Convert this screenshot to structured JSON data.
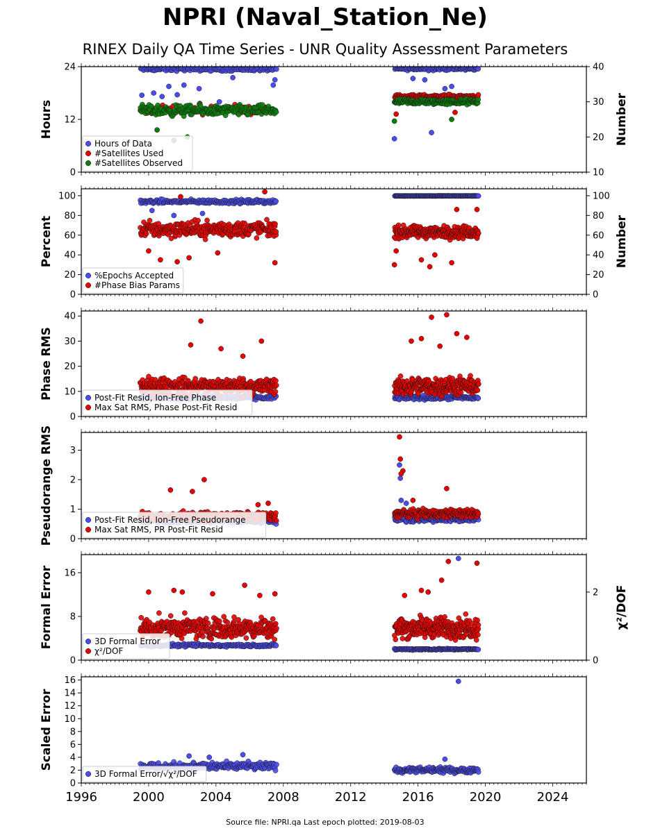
{
  "title": "NPRI (Naval_Station_Ne)",
  "subtitle": "RINEX Daily QA Time Series - UNR Quality Assessment Parameters",
  "source_note": "Source file: NPRI.qa Last epoch plotted: 2019-08-03",
  "colors": {
    "blue": "#4b4bf0",
    "red": "#e60000",
    "green": "#0a7d0a",
    "edge": "#1a1a1a"
  },
  "chart_data": [
    {
      "id": "p1",
      "type": "scatter",
      "ylabel": "Hours",
      "ylabel_right": "Number",
      "xlim": [
        1996,
        2026
      ],
      "ylim": [
        0,
        24
      ],
      "yticks": [
        0,
        12,
        24
      ],
      "ylim_right": [
        10,
        40
      ],
      "yticks_right": [
        10,
        20,
        30,
        40
      ],
      "series": [
        {
          "name": "Hours of Data",
          "color": "blue",
          "axis": "left",
          "segments": [
            {
              "x0": 1999.5,
              "x1": 2007.6,
              "base": 23.4,
              "spread": 0.6,
              "count": 150,
              "outliers": [
                [
                  1999.6,
                  17.5
                ],
                [
                  2000.3,
                  18.0
                ],
                [
                  2000.8,
                  17.2
                ],
                [
                  2001.2,
                  19.5
                ],
                [
                  2001.7,
                  17.6
                ],
                [
                  2002.1,
                  19.8
                ],
                [
                  2003.0,
                  19.0
                ],
                [
                  2004.2,
                  16.0
                ],
                [
                  2005.0,
                  21.5
                ],
                [
                  2007.4,
                  19.8
                ],
                [
                  2007.5,
                  21.0
                ]
              ]
            },
            {
              "x0": 2014.6,
              "x1": 2019.6,
              "base": 23.5,
              "spread": 0.5,
              "count": 110,
              "outliers": [
                [
                  2014.6,
                  7.6
                ],
                [
                  2015.7,
                  21.3
                ],
                [
                  2016.4,
                  21.0
                ],
                [
                  2016.8,
                  9.0
                ],
                [
                  2017.6,
                  19.0
                ],
                [
                  2018.0,
                  19.5
                ]
              ]
            }
          ]
        },
        {
          "name": "#Satellites Used",
          "color": "red",
          "axis": "right",
          "segments": [
            {
              "x0": 1999.5,
              "x1": 2007.6,
              "base": 28.0,
              "spread": 2.0,
              "count": 60,
              "outliers": []
            },
            {
              "x0": 2014.6,
              "x1": 2019.6,
              "base": 31.5,
              "spread": 0.8,
              "count": 130,
              "outliers": [
                [
                  2014.7,
                  26.5
                ],
                [
                  2018.2,
                  27.0
                ]
              ]
            }
          ]
        },
        {
          "name": "#Satellites Observed",
          "color": "green",
          "axis": "right",
          "segments": [
            {
              "x0": 1999.5,
              "x1": 2007.6,
              "base": 27.5,
              "spread": 2.2,
              "count": 220,
              "outliers": [
                [
                  2001.5,
                  19.0
                ],
                [
                  2002.3,
                  20.0
                ],
                [
                  2000.5,
                  22.0
                ]
              ]
            },
            {
              "x0": 2014.6,
              "x1": 2019.6,
              "base": 30.0,
              "spread": 1.2,
              "count": 170,
              "outliers": [
                [
                  2014.6,
                  24.5
                ],
                [
                  2018.0,
                  25.0
                ]
              ]
            }
          ]
        }
      ],
      "legend": [
        "Hours of Data",
        "#Satellites Used",
        "#Satellites Observed"
      ]
    },
    {
      "id": "p2",
      "type": "scatter",
      "ylabel": "Percent",
      "ylabel_right": "Number",
      "xlim": [
        1996,
        2026
      ],
      "ylim": [
        0,
        107
      ],
      "yticks": [
        0,
        20,
        40,
        60,
        80,
        100
      ],
      "ylim_right": [
        0,
        107
      ],
      "yticks_right": [
        0,
        20,
        40,
        60,
        80,
        100
      ],
      "series": [
        {
          "name": "%Epochs Accepted",
          "color": "blue",
          "axis": "left",
          "segments": [
            {
              "x0": 1999.5,
              "x1": 2007.6,
              "base": 94,
              "spread": 3,
              "count": 200,
              "outliers": [
                [
                  2000.2,
                  85
                ],
                [
                  2001.5,
                  80
                ],
                [
                  2003.2,
                  82
                ]
              ]
            },
            {
              "x0": 2014.6,
              "x1": 2019.6,
              "base": 99.8,
              "spread": 0.2,
              "count": 160,
              "outliers": []
            }
          ]
        },
        {
          "name": "#Phase Bias Params",
          "color": "red",
          "axis": "right",
          "segments": [
            {
              "x0": 1999.5,
              "x1": 2007.6,
              "base": 66,
              "spread": 12,
              "count": 280,
              "outliers": [
                [
                  2000.0,
                  44
                ],
                [
                  2000.7,
                  35
                ],
                [
                  2001.7,
                  33
                ],
                [
                  2002.4,
                  37
                ],
                [
                  2004.1,
                  42
                ],
                [
                  2006.9,
                  104
                ],
                [
                  2007.5,
                  32
                ],
                [
                  2001.9,
                  99
                ]
              ]
            },
            {
              "x0": 2014.6,
              "x1": 2019.6,
              "base": 63,
              "spread": 9,
              "count": 240,
              "outliers": [
                [
                  2014.6,
                  30
                ],
                [
                  2014.7,
                  44
                ],
                [
                  2016.2,
                  35
                ],
                [
                  2016.7,
                  28
                ],
                [
                  2017.0,
                  40
                ],
                [
                  2018.0,
                  32
                ],
                [
                  2018.3,
                  86
                ],
                [
                  2019.5,
                  86
                ]
              ]
            }
          ]
        }
      ],
      "legend": [
        "%Epochs Accepted",
        "#Phase Bias Params"
      ]
    },
    {
      "id": "p3",
      "type": "scatter",
      "ylabel": "Phase RMS",
      "xlim": [
        1996,
        2026
      ],
      "ylim": [
        0,
        42
      ],
      "yticks": [
        0,
        10,
        20,
        30,
        40
      ],
      "series": [
        {
          "name": "Post-Fit Resid, Ion-Free Phase",
          "color": "blue",
          "axis": "left",
          "segments": [
            {
              "x0": 1999.5,
              "x1": 2007.6,
              "base": 7.5,
              "spread": 1.2,
              "count": 180,
              "outliers": []
            },
            {
              "x0": 2014.6,
              "x1": 2019.6,
              "base": 7.5,
              "spread": 1.2,
              "count": 140,
              "outliers": []
            }
          ]
        },
        {
          "name": "Max Sat RMS, Phase Post-Fit Resid",
          "color": "red",
          "axis": "left",
          "segments": [
            {
              "x0": 1999.5,
              "x1": 2007.6,
              "base": 12,
              "spread": 5,
              "count": 320,
              "outliers": [
                [
                  2003.1,
                  38
                ],
                [
                  2002.5,
                  28.5
                ],
                [
                  2006.7,
                  30
                ],
                [
                  2004.3,
                  27
                ],
                [
                  2005.6,
                  24
                ]
              ]
            },
            {
              "x0": 2014.6,
              "x1": 2019.6,
              "base": 12,
              "spread": 5,
              "count": 260,
              "outliers": [
                [
                  2016.8,
                  39.5
                ],
                [
                  2017.7,
                  40.5
                ],
                [
                  2018.3,
                  33
                ],
                [
                  2018.9,
                  31.5
                ],
                [
                  2016.2,
                  31
                ],
                [
                  2015.6,
                  30
                ],
                [
                  2017.3,
                  28
                ]
              ]
            }
          ]
        }
      ],
      "legend": [
        "Post-Fit Resid, Ion-Free Phase",
        "Max Sat RMS, Phase Post-Fit Resid"
      ]
    },
    {
      "id": "p4",
      "type": "scatter",
      "ylabel": "Pseudorange RMS",
      "xlim": [
        1996,
        2026
      ],
      "ylim": [
        0,
        3.6
      ],
      "yticks": [
        0,
        1,
        2,
        3
      ],
      "series": [
        {
          "name": "Post-Fit Resid, Ion-Free Pseudorange",
          "color": "blue",
          "axis": "left",
          "segments": [
            {
              "x0": 1999.5,
              "x1": 2007.6,
              "base": 0.6,
              "spread": 0.12,
              "count": 180,
              "outliers": []
            },
            {
              "x0": 2014.6,
              "x1": 2019.6,
              "base": 0.65,
              "spread": 0.12,
              "count": 140,
              "outliers": [
                [
                  2014.9,
                  2.5
                ],
                [
                  2014.95,
                  2.05
                ],
                [
                  2015.0,
                  1.3
                ],
                [
                  2015.3,
                  1.2
                ]
              ]
            }
          ]
        },
        {
          "name": "Max Sat RMS, PR Post-Fit Resid",
          "color": "red",
          "axis": "left",
          "segments": [
            {
              "x0": 1999.5,
              "x1": 2007.6,
              "base": 0.75,
              "spread": 0.22,
              "count": 260,
              "outliers": [
                [
                  2003.3,
                  2.0
                ],
                [
                  2001.3,
                  1.65
                ],
                [
                  2002.6,
                  1.6
                ],
                [
                  2006.5,
                  1.15
                ],
                [
                  2007.1,
                  1.2
                ]
              ]
            },
            {
              "x0": 2014.6,
              "x1": 2019.6,
              "base": 0.85,
              "spread": 0.2,
              "count": 220,
              "outliers": [
                [
                  2014.9,
                  3.45
                ],
                [
                  2014.95,
                  2.7
                ],
                [
                  2015.1,
                  2.3
                ],
                [
                  2015.0,
                  2.2
                ],
                [
                  2017.7,
                  1.7
                ],
                [
                  2015.7,
                  1.3
                ]
              ]
            }
          ]
        }
      ],
      "legend": [
        "Post-Fit Resid, Ion-Free Pseudorange",
        "Max Sat RMS, PR Post-Fit Resid"
      ]
    },
    {
      "id": "p5",
      "type": "scatter",
      "ylabel": "Formal Error",
      "ylabel_right": "χ²/DOF",
      "xlim": [
        1996,
        2026
      ],
      "ylim": [
        0,
        19.3
      ],
      "yticks": [
        0,
        8,
        16
      ],
      "ylim_right": [
        0,
        3.1
      ],
      "yticks_right": [
        0,
        2
      ],
      "series": [
        {
          "name": "3D Formal Error",
          "color": "blue",
          "axis": "left",
          "segments": [
            {
              "x0": 1999.5,
              "x1": 2007.6,
              "base": 2.7,
              "spread": 0.4,
              "count": 180,
              "outliers": []
            },
            {
              "x0": 2014.6,
              "x1": 2019.6,
              "base": 2.0,
              "spread": 0.2,
              "count": 150,
              "outliers": [
                [
                  2018.4,
                  18.6
                ]
              ]
            }
          ]
        },
        {
          "name": "χ²/DOF",
          "color": "red",
          "axis": "right",
          "segments": [
            {
              "x0": 1999.5,
              "x1": 2007.6,
              "base": 0.95,
              "spread": 0.45,
              "count": 320,
              "outliers": [
                [
                  2005.7,
                  2.2
                ],
                [
                  2001.5,
                  2.05
                ],
                [
                  2002.0,
                  2.0
                ],
                [
                  2007.5,
                  1.95
                ],
                [
                  2003.8,
                  1.95
                ],
                [
                  2006.6,
                  1.9
                ],
                [
                  2000.0,
                  2.0
                ]
              ]
            },
            {
              "x0": 2014.6,
              "x1": 2019.6,
              "base": 0.95,
              "spread": 0.45,
              "count": 260,
              "outliers": [
                [
                  2017.8,
                  2.9
                ],
                [
                  2019.5,
                  2.85
                ],
                [
                  2017.4,
                  2.35
                ],
                [
                  2016.2,
                  2.05
                ],
                [
                  2016.6,
                  2.0
                ],
                [
                  2015.2,
                  1.9
                ]
              ]
            }
          ]
        }
      ],
      "legend": [
        "3D Formal Error",
        "χ²/DOF"
      ]
    },
    {
      "id": "p6",
      "type": "scatter",
      "ylabel": "Scaled Error",
      "xlim": [
        1996,
        2026
      ],
      "ylim": [
        0,
        16.5
      ],
      "yticks": [
        0,
        2,
        4,
        6,
        8,
        10,
        12,
        14,
        16
      ],
      "xticks": [
        1996,
        2000,
        2004,
        2008,
        2012,
        2016,
        2020,
        2024
      ],
      "series": [
        {
          "name": "3D Formal Error/√χ²/DOF",
          "color": "blue",
          "axis": "left",
          "segments": [
            {
              "x0": 1999.5,
              "x1": 2007.6,
              "base": 2.6,
              "spread": 0.9,
              "count": 230,
              "outliers": [
                [
                  2005.6,
                  4.4
                ],
                [
                  2002.4,
                  4.2
                ],
                [
                  2003.6,
                  4.0
                ]
              ]
            },
            {
              "x0": 2014.6,
              "x1": 2019.6,
              "base": 2.0,
              "spread": 0.6,
              "count": 180,
              "outliers": [
                [
                  2018.4,
                  15.8
                ],
                [
                  2017.6,
                  3.7
                ]
              ]
            }
          ]
        }
      ],
      "legend": [
        "3D Formal Error/√χ²/DOF"
      ]
    }
  ]
}
